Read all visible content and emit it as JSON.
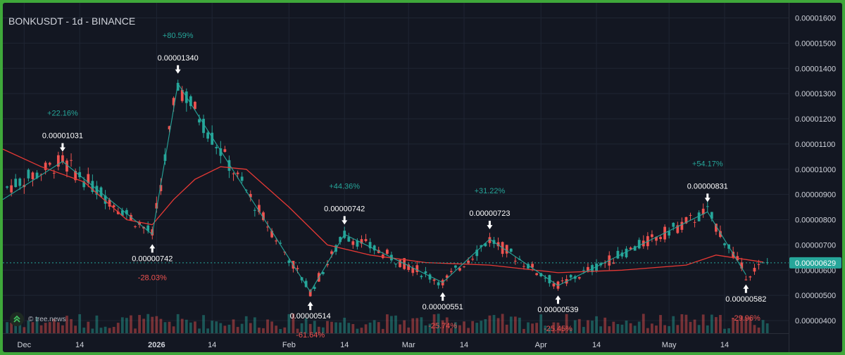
{
  "header": {
    "title": "BONKUSDT - 1d - BINANCE"
  },
  "watermark": {
    "text": "© tree.news"
  },
  "colors": {
    "background": "#131722",
    "frame": "#3fa83a",
    "up": "#26a69a",
    "down": "#ef5350",
    "ma": "#e53935",
    "zigzag": "#26a69a",
    "grid": "#1f2533",
    "text": "#d1d4dc"
  },
  "chart_data": {
    "type": "candlestick",
    "symbol": "BONKUSDT",
    "interval": "1d",
    "exchange": "BINANCE",
    "x_ticks": [
      {
        "label": "Dec",
        "date": "2025-12-01"
      },
      {
        "label": "14",
        "date": "2025-12-14"
      },
      {
        "label": "2026",
        "date": "2026-01-01"
      },
      {
        "label": "14",
        "date": "2026-01-14"
      },
      {
        "label": "Feb",
        "date": "2026-02-01"
      },
      {
        "label": "14",
        "date": "2026-02-14"
      },
      {
        "label": "Mar",
        "date": "2026-03-01"
      },
      {
        "label": "14",
        "date": "2026-03-14"
      },
      {
        "label": "Apr",
        "date": "2026-04-01"
      },
      {
        "label": "14",
        "date": "2026-04-14"
      },
      {
        "label": "May",
        "date": "2026-05-01"
      },
      {
        "label": "14",
        "date": "2026-05-14"
      }
    ],
    "y_ticks": [
      "0.00001600",
      "0.00001500",
      "0.00001400",
      "0.00001300",
      "0.00001200",
      "0.00001100",
      "0.00001000",
      "0.00000900",
      "0.00000800",
      "0.00000700",
      "0.00000600",
      "0.00000500",
      "0.00000400"
    ],
    "y_range": [
      3.5e-06,
      1.66e-05
    ],
    "x_range": [
      "2025-11-26",
      "2026-05-29"
    ],
    "last_price": {
      "label": "0.00000629",
      "value": 6.29e-06
    },
    "pivots": [
      {
        "date": "2025-12-10",
        "value": 1.031e-05,
        "label": "0.00001031",
        "kind": "high"
      },
      {
        "date": "2025-12-31",
        "value": 7.42e-06,
        "label": "0.00000742",
        "kind": "low"
      },
      {
        "date": "2026-01-06",
        "value": 1.34e-05,
        "label": "0.00001340",
        "kind": "high"
      },
      {
        "date": "2026-02-06",
        "value": 5.14e-06,
        "label": "0.00000514",
        "kind": "low"
      },
      {
        "date": "2026-02-14",
        "value": 7.42e-06,
        "label": "0.00000742",
        "kind": "high"
      },
      {
        "date": "2026-03-09",
        "value": 5.51e-06,
        "label": "0.00000551",
        "kind": "low"
      },
      {
        "date": "2026-03-20",
        "value": 7.23e-06,
        "label": "0.00000723",
        "kind": "high"
      },
      {
        "date": "2026-04-05",
        "value": 5.39e-06,
        "label": "0.00000539",
        "kind": "low"
      },
      {
        "date": "2026-05-10",
        "value": 8.31e-06,
        "label": "0.00000831",
        "kind": "high"
      },
      {
        "date": "2026-05-19",
        "value": 5.82e-06,
        "label": "0.00000582",
        "kind": "low"
      }
    ],
    "changes": [
      {
        "text": "+22.16%",
        "pivot": 0,
        "dir": "up"
      },
      {
        "text": "-28.03%",
        "pivot": 1,
        "dir": "down"
      },
      {
        "text": "+80.59%",
        "pivot": 2,
        "dir": "up"
      },
      {
        "text": "-61.64%",
        "pivot": 3,
        "dir": "down"
      },
      {
        "text": "+44.36%",
        "pivot": 4,
        "dir": "up"
      },
      {
        "text": "-25.74%",
        "pivot": 5,
        "dir": "down"
      },
      {
        "text": "+31.22%",
        "pivot": 6,
        "dir": "up"
      },
      {
        "text": "-25.45%",
        "pivot": 7,
        "dir": "down"
      },
      {
        "text": "+54.17%",
        "pivot": 8,
        "dir": "up"
      },
      {
        "text": "-29.96%",
        "pivot": 9,
        "dir": "down"
      }
    ],
    "ma_path": [
      {
        "date": "2025-11-26",
        "value": 1.08e-05
      },
      {
        "date": "2025-12-05",
        "value": 1.01e-05
      },
      {
        "date": "2025-12-15",
        "value": 9.5e-06
      },
      {
        "date": "2025-12-25",
        "value": 8e-06
      },
      {
        "date": "2025-12-31",
        "value": 7.8e-06
      },
      {
        "date": "2026-01-05",
        "value": 8.8e-06
      },
      {
        "date": "2026-01-10",
        "value": 9.6e-06
      },
      {
        "date": "2026-01-16",
        "value": 1.01e-05
      },
      {
        "date": "2026-01-22",
        "value": 1e-05
      },
      {
        "date": "2026-02-01",
        "value": 8.5e-06
      },
      {
        "date": "2026-02-10",
        "value": 7e-06
      },
      {
        "date": "2026-02-20",
        "value": 6.6e-06
      },
      {
        "date": "2026-03-05",
        "value": 6.3e-06
      },
      {
        "date": "2026-03-20",
        "value": 6.2e-06
      },
      {
        "date": "2026-04-05",
        "value": 5.9e-06
      },
      {
        "date": "2026-04-20",
        "value": 6e-06
      },
      {
        "date": "2026-05-05",
        "value": 6.2e-06
      },
      {
        "date": "2026-05-12",
        "value": 6.6e-06
      },
      {
        "date": "2026-05-23",
        "value": 6.32e-06
      }
    ]
  }
}
